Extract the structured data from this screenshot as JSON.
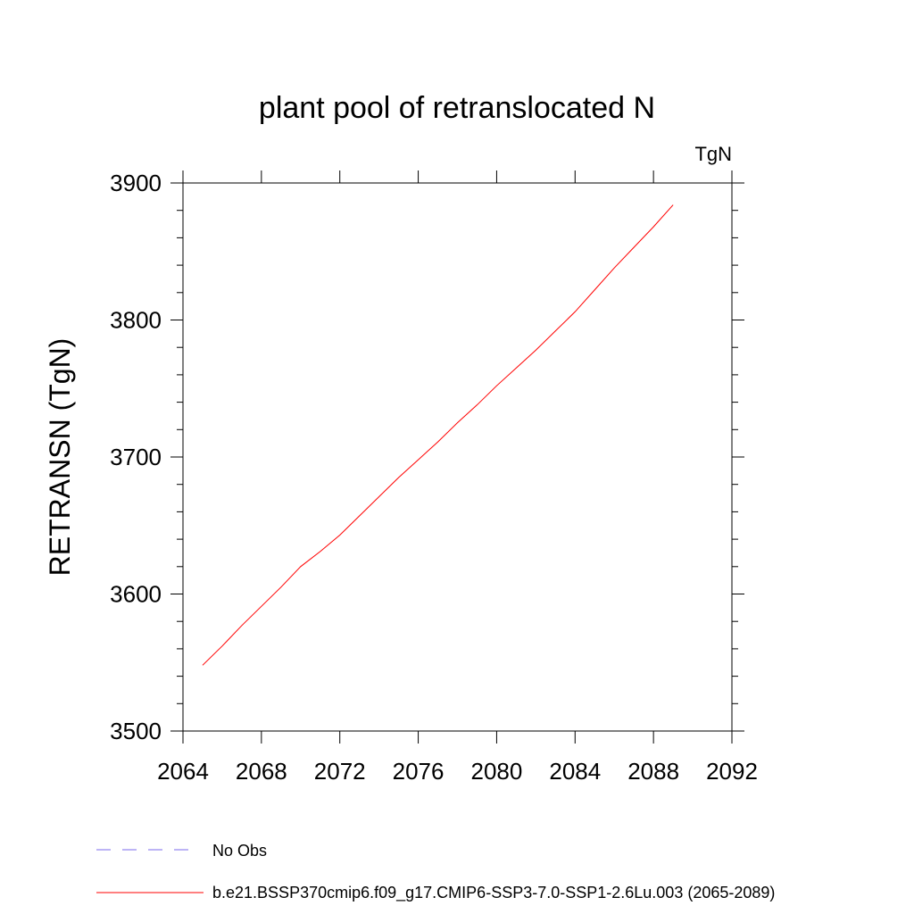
{
  "chart_data": {
    "type": "line",
    "title": "plant pool of retranslocated N",
    "units_label": "TgN",
    "ylabel": "RETRANSN  (TgN)",
    "xlabel": "",
    "xlim": [
      2064,
      2092
    ],
    "ylim": [
      3500,
      3900
    ],
    "x_ticks": [
      2064,
      2068,
      2072,
      2076,
      2080,
      2084,
      2088,
      2092
    ],
    "y_ticks": [
      3500,
      3600,
      3700,
      3800,
      3900
    ],
    "x_tick_labels": [
      "2064",
      "2068",
      "2072",
      "2076",
      "2080",
      "2084",
      "2088",
      "2092"
    ],
    "y_tick_labels": [
      "3500",
      "3600",
      "3700",
      "3800",
      "3900"
    ],
    "grid": false,
    "series": [
      {
        "name": "b.e21.BSSP370cmip6.f09_g17.CMIP6-SSP3-7.0-SSP1-2.6Lu.003 (2065-2089)",
        "color": "#ff0000",
        "x": [
          2065,
          2066,
          2067,
          2068,
          2069,
          2070,
          2071,
          2072,
          2073,
          2074,
          2075,
          2076,
          2077,
          2078,
          2079,
          2080,
          2081,
          2082,
          2083,
          2084,
          2085,
          2086,
          2087,
          2088,
          2089
        ],
        "y": [
          3548,
          3562,
          3577,
          3591,
          3605,
          3620,
          3631,
          3643,
          3657,
          3671,
          3685,
          3698,
          3711,
          3725,
          3738,
          3752,
          3765,
          3778,
          3792,
          3806,
          3822,
          3838,
          3853,
          3868,
          3884
        ]
      }
    ],
    "legend": {
      "placement": "bottom",
      "entries": [
        {
          "label": "No Obs",
          "style": "dashed",
          "color": "#7b68ee"
        },
        {
          "label": "b.e21.BSSP370cmip6.f09_g17.CMIP6-SSP3-7.0-SSP1-2.6Lu.003 (2065-2089)",
          "style": "solid",
          "color": "#ff0000"
        }
      ]
    }
  }
}
